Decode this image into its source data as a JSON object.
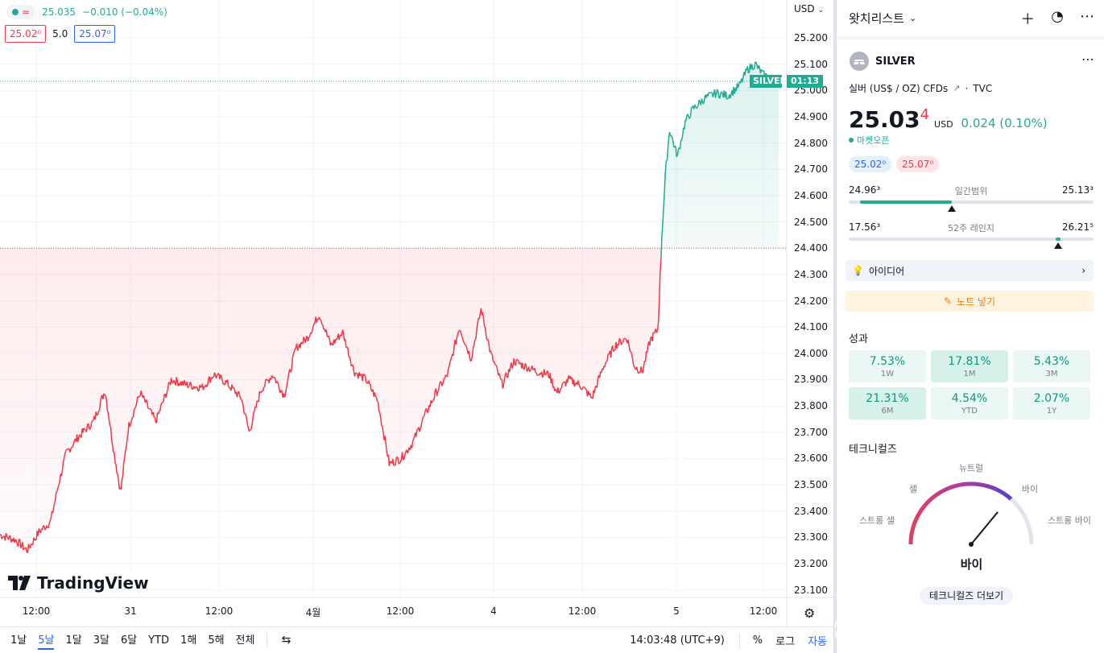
{
  "legend": {
    "price": "25.035",
    "change": "−0.010 (−0.04%)",
    "bid": "25.02⁰",
    "spread": "5.0",
    "ask": "25.07⁰"
  },
  "axis": {
    "currency": "USD",
    "y_ticks": [
      "25.200",
      "25.100",
      "25.000",
      "24.900",
      "24.800",
      "24.700",
      "24.600",
      "24.500",
      "24.400",
      "24.300",
      "24.200",
      "24.100",
      "24.000",
      "23.900",
      "23.800",
      "23.700",
      "23.600",
      "23.500",
      "23.400",
      "23.300",
      "23.200",
      "23.100"
    ],
    "x_ticks": [
      "12:00",
      "31",
      "12:00",
      "4월",
      "12:00",
      "4",
      "12:00",
      "5",
      "12:00"
    ]
  },
  "price_tag": {
    "symbol": "SILVER",
    "countdown": "01:13"
  },
  "logo_text": "TradingView",
  "bottom_bar": {
    "ranges": [
      "1날",
      "5날",
      "1달",
      "3달",
      "6달",
      "YTD",
      "1해",
      "5해",
      "전체"
    ],
    "active_range": "5날",
    "time": "14:03:48 (UTC+9)",
    "percent": "%",
    "log": "로그",
    "auto": "자동"
  },
  "watchlist": {
    "title": "왓치리스트",
    "symbol": "SILVER",
    "description": "실버 (US$ / OZ) CFDs",
    "source": "TVC",
    "price_main": "25.03",
    "price_sup": "4",
    "unit": "USD",
    "change": "0.024 (0.10%)",
    "market_status": "마켓오픈",
    "bid": "25.02⁰",
    "ask": "25.07⁰",
    "day_range": {
      "label": "일간범위",
      "low": "24.96³",
      "high": "25.13³",
      "position": 0.42
    },
    "week52_range": {
      "label": "52주 레인지",
      "low": "17.56³",
      "high": "26.21⁵",
      "position": 0.855
    },
    "ideas_label": "아이디어",
    "note_label": "노트 넣기",
    "performance_title": "성과",
    "performance": [
      {
        "value": "7.53%",
        "label": "1W",
        "strong": false
      },
      {
        "value": "17.81%",
        "label": "1M",
        "strong": true
      },
      {
        "value": "5.43%",
        "label": "3M",
        "strong": false
      },
      {
        "value": "21.31%",
        "label": "6M",
        "strong": true
      },
      {
        "value": "4.54%",
        "label": "YTD",
        "strong": false
      },
      {
        "value": "2.07%",
        "label": "1Y",
        "strong": false
      }
    ],
    "technicals_title": "테크니컬즈",
    "gauge": {
      "strong_sell": "스트롱 셀",
      "sell": "셀",
      "neutral": "뉴트럴",
      "buy": "바이",
      "strong_buy": "스트롱 바이",
      "result": "바이",
      "needle_value": 0.72
    },
    "technicals_more": "테크니컬즈 더보기"
  },
  "colors": {
    "up": "#22ab94",
    "down": "#f23645",
    "accent": "#2962ff"
  },
  "chart_data": {
    "type": "area",
    "ylim": [
      23.05,
      25.25
    ],
    "baseline": 24.4,
    "last": 25.035,
    "keypoints": [
      [
        0,
        23.31
      ],
      [
        0.02,
        23.29
      ],
      [
        0.035,
        23.25
      ],
      [
        0.05,
        23.32
      ],
      [
        0.065,
        23.36
      ],
      [
        0.075,
        23.5
      ],
      [
        0.085,
        23.62
      ],
      [
        0.1,
        23.68
      ],
      [
        0.12,
        23.74
      ],
      [
        0.135,
        23.86
      ],
      [
        0.145,
        23.65
      ],
      [
        0.155,
        23.47
      ],
      [
        0.165,
        23.72
      ],
      [
        0.18,
        23.85
      ],
      [
        0.2,
        23.74
      ],
      [
        0.22,
        23.9
      ],
      [
        0.24,
        23.88
      ],
      [
        0.26,
        23.87
      ],
      [
        0.275,
        23.92
      ],
      [
        0.29,
        23.89
      ],
      [
        0.31,
        23.83
      ],
      [
        0.32,
        23.7
      ],
      [
        0.335,
        23.86
      ],
      [
        0.35,
        23.92
      ],
      [
        0.365,
        23.84
      ],
      [
        0.38,
        24.02
      ],
      [
        0.395,
        24.06
      ],
      [
        0.41,
        24.15
      ],
      [
        0.425,
        24.03
      ],
      [
        0.44,
        24.08
      ],
      [
        0.455,
        23.93
      ],
      [
        0.47,
        23.9
      ],
      [
        0.485,
        23.82
      ],
      [
        0.5,
        23.58
      ],
      [
        0.515,
        23.6
      ],
      [
        0.53,
        23.66
      ],
      [
        0.545,
        23.76
      ],
      [
        0.56,
        23.85
      ],
      [
        0.575,
        23.92
      ],
      [
        0.59,
        24.1
      ],
      [
        0.605,
        23.98
      ],
      [
        0.618,
        24.17
      ],
      [
        0.63,
        24.0
      ],
      [
        0.645,
        23.88
      ],
      [
        0.66,
        23.97
      ],
      [
        0.675,
        23.95
      ],
      [
        0.69,
        23.93
      ],
      [
        0.705,
        23.92
      ],
      [
        0.715,
        23.85
      ],
      [
        0.73,
        23.9
      ],
      [
        0.745,
        23.88
      ],
      [
        0.76,
        23.83
      ],
      [
        0.775,
        23.95
      ],
      [
        0.79,
        24.03
      ],
      [
        0.805,
        24.06
      ],
      [
        0.815,
        23.95
      ],
      [
        0.825,
        23.93
      ],
      [
        0.835,
        24.05
      ],
      [
        0.845,
        24.09
      ],
      [
        0.85,
        24.45
      ],
      [
        0.855,
        24.7
      ],
      [
        0.86,
        24.85
      ],
      [
        0.87,
        24.75
      ],
      [
        0.88,
        24.88
      ],
      [
        0.89,
        24.93
      ],
      [
        0.905,
        24.97
      ],
      [
        0.92,
        24.99
      ],
      [
        0.935,
        24.98
      ],
      [
        0.95,
        25.02
      ],
      [
        0.96,
        25.08
      ],
      [
        0.97,
        25.1
      ],
      [
        0.98,
        25.06
      ],
      [
        1.0,
        25.035
      ]
    ],
    "x_tick_labels": [
      "12:00",
      "31",
      "12:00",
      "4월",
      "12:00",
      "4",
      "12:00",
      "5",
      "12:00"
    ]
  }
}
